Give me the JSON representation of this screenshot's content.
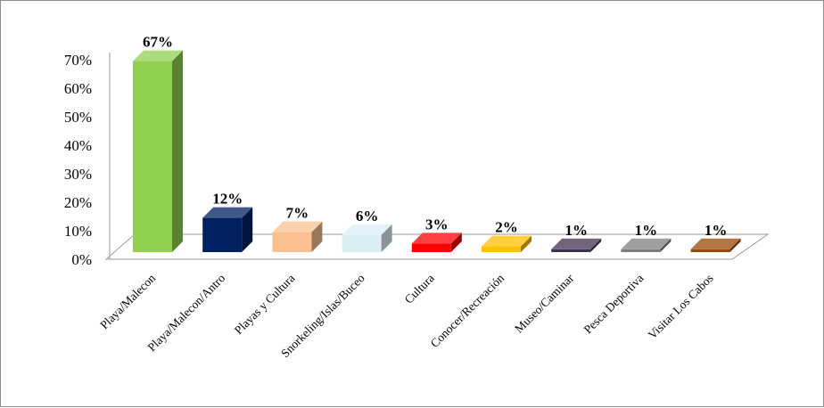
{
  "chart_data": {
    "type": "bar",
    "title": "",
    "xlabel": "",
    "ylabel": "",
    "ylim": [
      0,
      70
    ],
    "y_ticks": [
      "0%",
      "10%",
      "20%",
      "30%",
      "40%",
      "50%",
      "60%",
      "70%"
    ],
    "categories": [
      "Playa/Malecon",
      "Playa/Malecon/Antro",
      "Playas y Cultura",
      "Snorkeling/Islas/Buceo",
      "Cultura",
      "Conocer/Recreación",
      "Museo/Caminar",
      "Pesca Deportiva",
      "Visitar Los Cabos"
    ],
    "values": [
      67,
      12,
      7,
      6,
      3,
      2,
      1,
      1,
      1
    ],
    "value_labels": [
      "67%",
      "12%",
      "7%",
      "6%",
      "3%",
      "2%",
      "1%",
      "1%",
      "1%"
    ],
    "colors": [
      "#92d050",
      "#002060",
      "#fac090",
      "#dbeef4",
      "#ff0000",
      "#ffc000",
      "#403152",
      "#7f7f7f",
      "#984807"
    ],
    "grid": false,
    "legend": "none",
    "style": "3d-column"
  }
}
